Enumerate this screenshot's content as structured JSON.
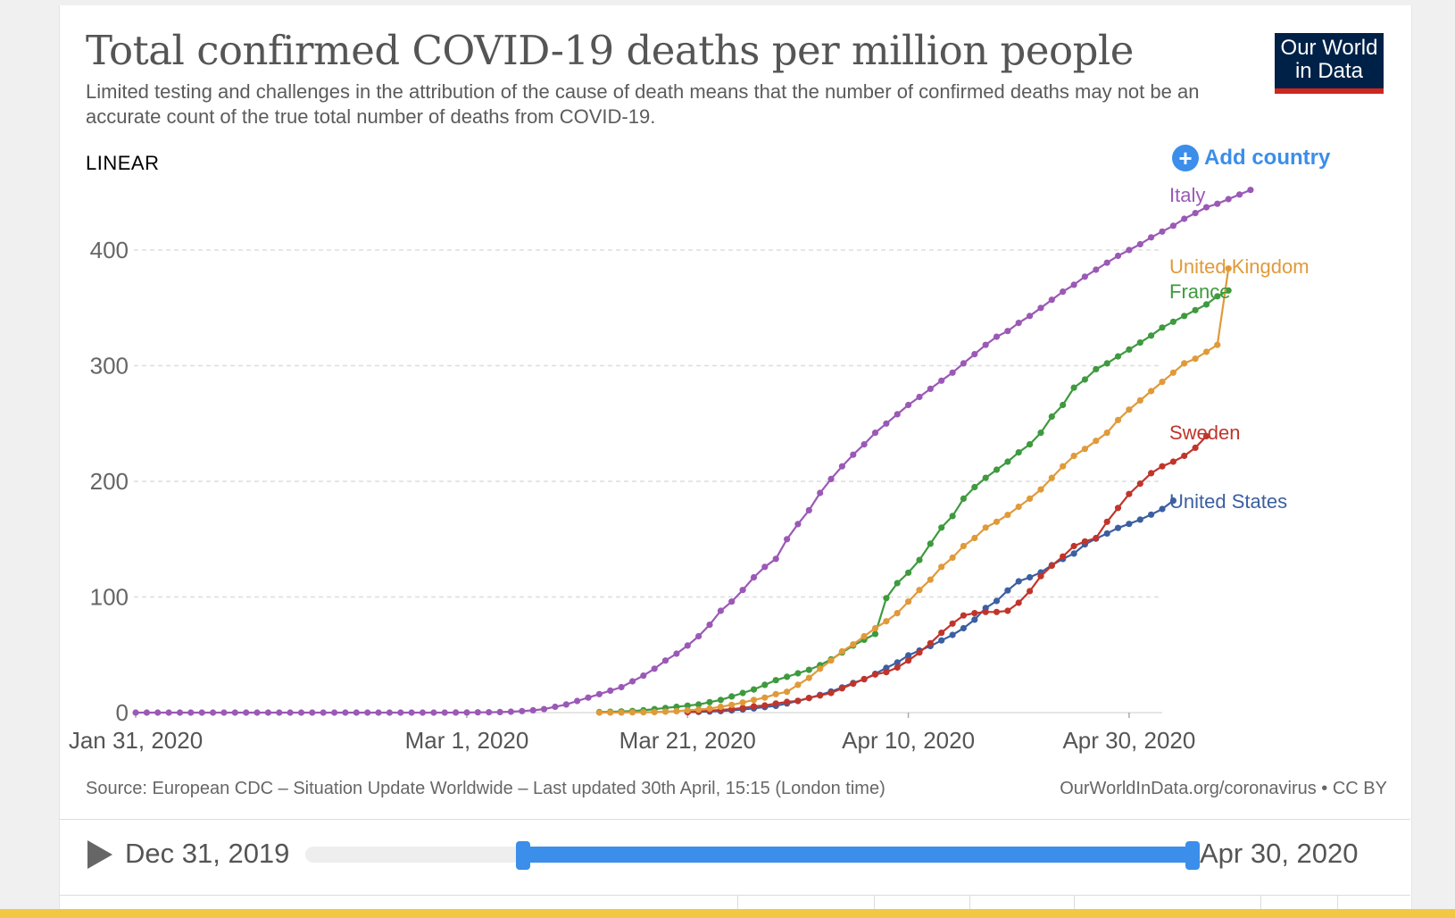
{
  "header": {
    "title": "Total confirmed COVID-19 deaths per million people",
    "subtitle": "Limited testing and challenges in the attribution of the cause of death means that the number of confirmed deaths may not be an accurate count of the true total number of deaths from COVID-19.",
    "logo_line1": "Our World",
    "logo_line2": "in Data"
  },
  "controls": {
    "scale_label": "LINEAR",
    "add_country_label": "Add country"
  },
  "footer": {
    "source": "Source: European CDC – Situation Update Worldwide – Last updated 30th April, 15:15 (London time)",
    "link": "OurWorldInData.org/coronavirus • CC BY"
  },
  "timeline": {
    "start_label": "Dec 31, 2019",
    "end_label": "Apr 30, 2020",
    "range_start_fraction": 0.245,
    "range_end_fraction": 1.0
  },
  "colors": {
    "Italy": "#9b59b6",
    "United Kingdom": "#e09a3a",
    "France": "#3e9a3e",
    "Sweden": "#c0352b",
    "United States": "#3b5fa1",
    "accent": "#3b8eea"
  },
  "chart_data": {
    "type": "line",
    "title": "Total confirmed COVID-19 deaths per million people",
    "xlabel": "",
    "ylabel": "",
    "ylim": [
      0,
      460
    ],
    "y_ticks": [
      0,
      100,
      200,
      300,
      400
    ],
    "x_tick_days": [
      0,
      30,
      50,
      70,
      90
    ],
    "x_tick_labels": [
      "Jan 31, 2020",
      "Mar 1, 2020",
      "Mar 21, 2020",
      "Apr 10, 2020",
      "Apr 30, 2020"
    ],
    "x_unit": "days since Jan 31, 2020",
    "series": [
      {
        "name": "Italy",
        "start_day": 0,
        "values": [
          0,
          0,
          0,
          0,
          0,
          0,
          0,
          0,
          0,
          0,
          0,
          0,
          0,
          0,
          0,
          0,
          0,
          0,
          0,
          0,
          0,
          0,
          0,
          0,
          0,
          0,
          0,
          0,
          0,
          0.05,
          0.1,
          0.2,
          0.3,
          0.5,
          0.8,
          1.3,
          2,
          3,
          5,
          7,
          10,
          13,
          16,
          19,
          22,
          27,
          32,
          38,
          45,
          51,
          58,
          66,
          76,
          88,
          96,
          106,
          117,
          126,
          133,
          150,
          163,
          175,
          190,
          202,
          213,
          223,
          232,
          242,
          250,
          258,
          266,
          273,
          280,
          287,
          294,
          302,
          310,
          318,
          325,
          330,
          337,
          343,
          350,
          357,
          364,
          370,
          377,
          383,
          389,
          395,
          400,
          405,
          411,
          416,
          421,
          427,
          432,
          437,
          440,
          444,
          448,
          452
        ]
      },
      {
        "name": "United Kingdom",
        "start_day": 42,
        "values": [
          0,
          0.05,
          0.1,
          0.2,
          0.3,
          0.5,
          0.8,
          1.2,
          2,
          2.6,
          3.5,
          5,
          6.7,
          8.7,
          11,
          13,
          16,
          18,
          24,
          30,
          38,
          45,
          53,
          59,
          66,
          73,
          79,
          86,
          96,
          106,
          115,
          126,
          134,
          144,
          151,
          160,
          165,
          171,
          178,
          185,
          193,
          203,
          213,
          222,
          228,
          235,
          242,
          253,
          262,
          270,
          278,
          286,
          294,
          302,
          306,
          312,
          318,
          384
        ]
      },
      {
        "name": "France",
        "start_day": 42,
        "values": [
          0.5,
          0.7,
          1,
          1.4,
          2,
          3,
          4,
          5,
          6,
          7,
          9,
          11,
          14,
          17,
          20,
          24,
          28,
          31,
          34,
          37,
          41,
          46,
          52,
          58,
          63,
          68,
          99,
          112,
          121,
          132,
          146,
          160,
          170,
          185,
          195,
          203,
          210,
          217,
          225,
          232,
          242,
          256,
          266,
          281,
          288,
          297,
          302,
          308,
          314,
          320,
          326,
          333,
          338,
          343,
          348,
          353,
          360,
          365
        ]
      },
      {
        "name": "Sweden",
        "start_day": 50,
        "values": [
          0.5,
          1,
          1.7,
          2.3,
          3,
          4,
          5.4,
          6.2,
          7.9,
          9.3,
          10.2,
          12.7,
          14.8,
          17,
          21,
          25,
          29,
          33,
          35,
          39,
          45,
          52,
          60,
          69,
          77,
          84,
          86,
          87,
          87,
          88,
          95,
          105,
          118,
          127,
          135,
          144,
          148,
          151,
          165,
          177,
          189,
          198,
          207,
          213,
          217,
          222,
          229,
          239
        ]
      },
      {
        "name": "United States",
        "start_day": 50,
        "values": [
          0.4,
          0.6,
          0.9,
          1.3,
          1.9,
          2.7,
          3.6,
          4.8,
          5.9,
          7.9,
          10,
          12.6,
          15.3,
          18.2,
          21.8,
          25.6,
          28.8,
          33.5,
          38.7,
          43.3,
          49.5,
          53.7,
          57.5,
          62.4,
          67.2,
          73,
          80.4,
          90.4,
          96.5,
          105.6,
          113.5,
          117,
          121.2,
          127.5,
          132.9,
          137.5,
          145.5,
          150.4,
          154.9,
          159.7,
          163.2,
          166.9,
          171.2,
          176.1,
          183.3
        ]
      }
    ]
  }
}
